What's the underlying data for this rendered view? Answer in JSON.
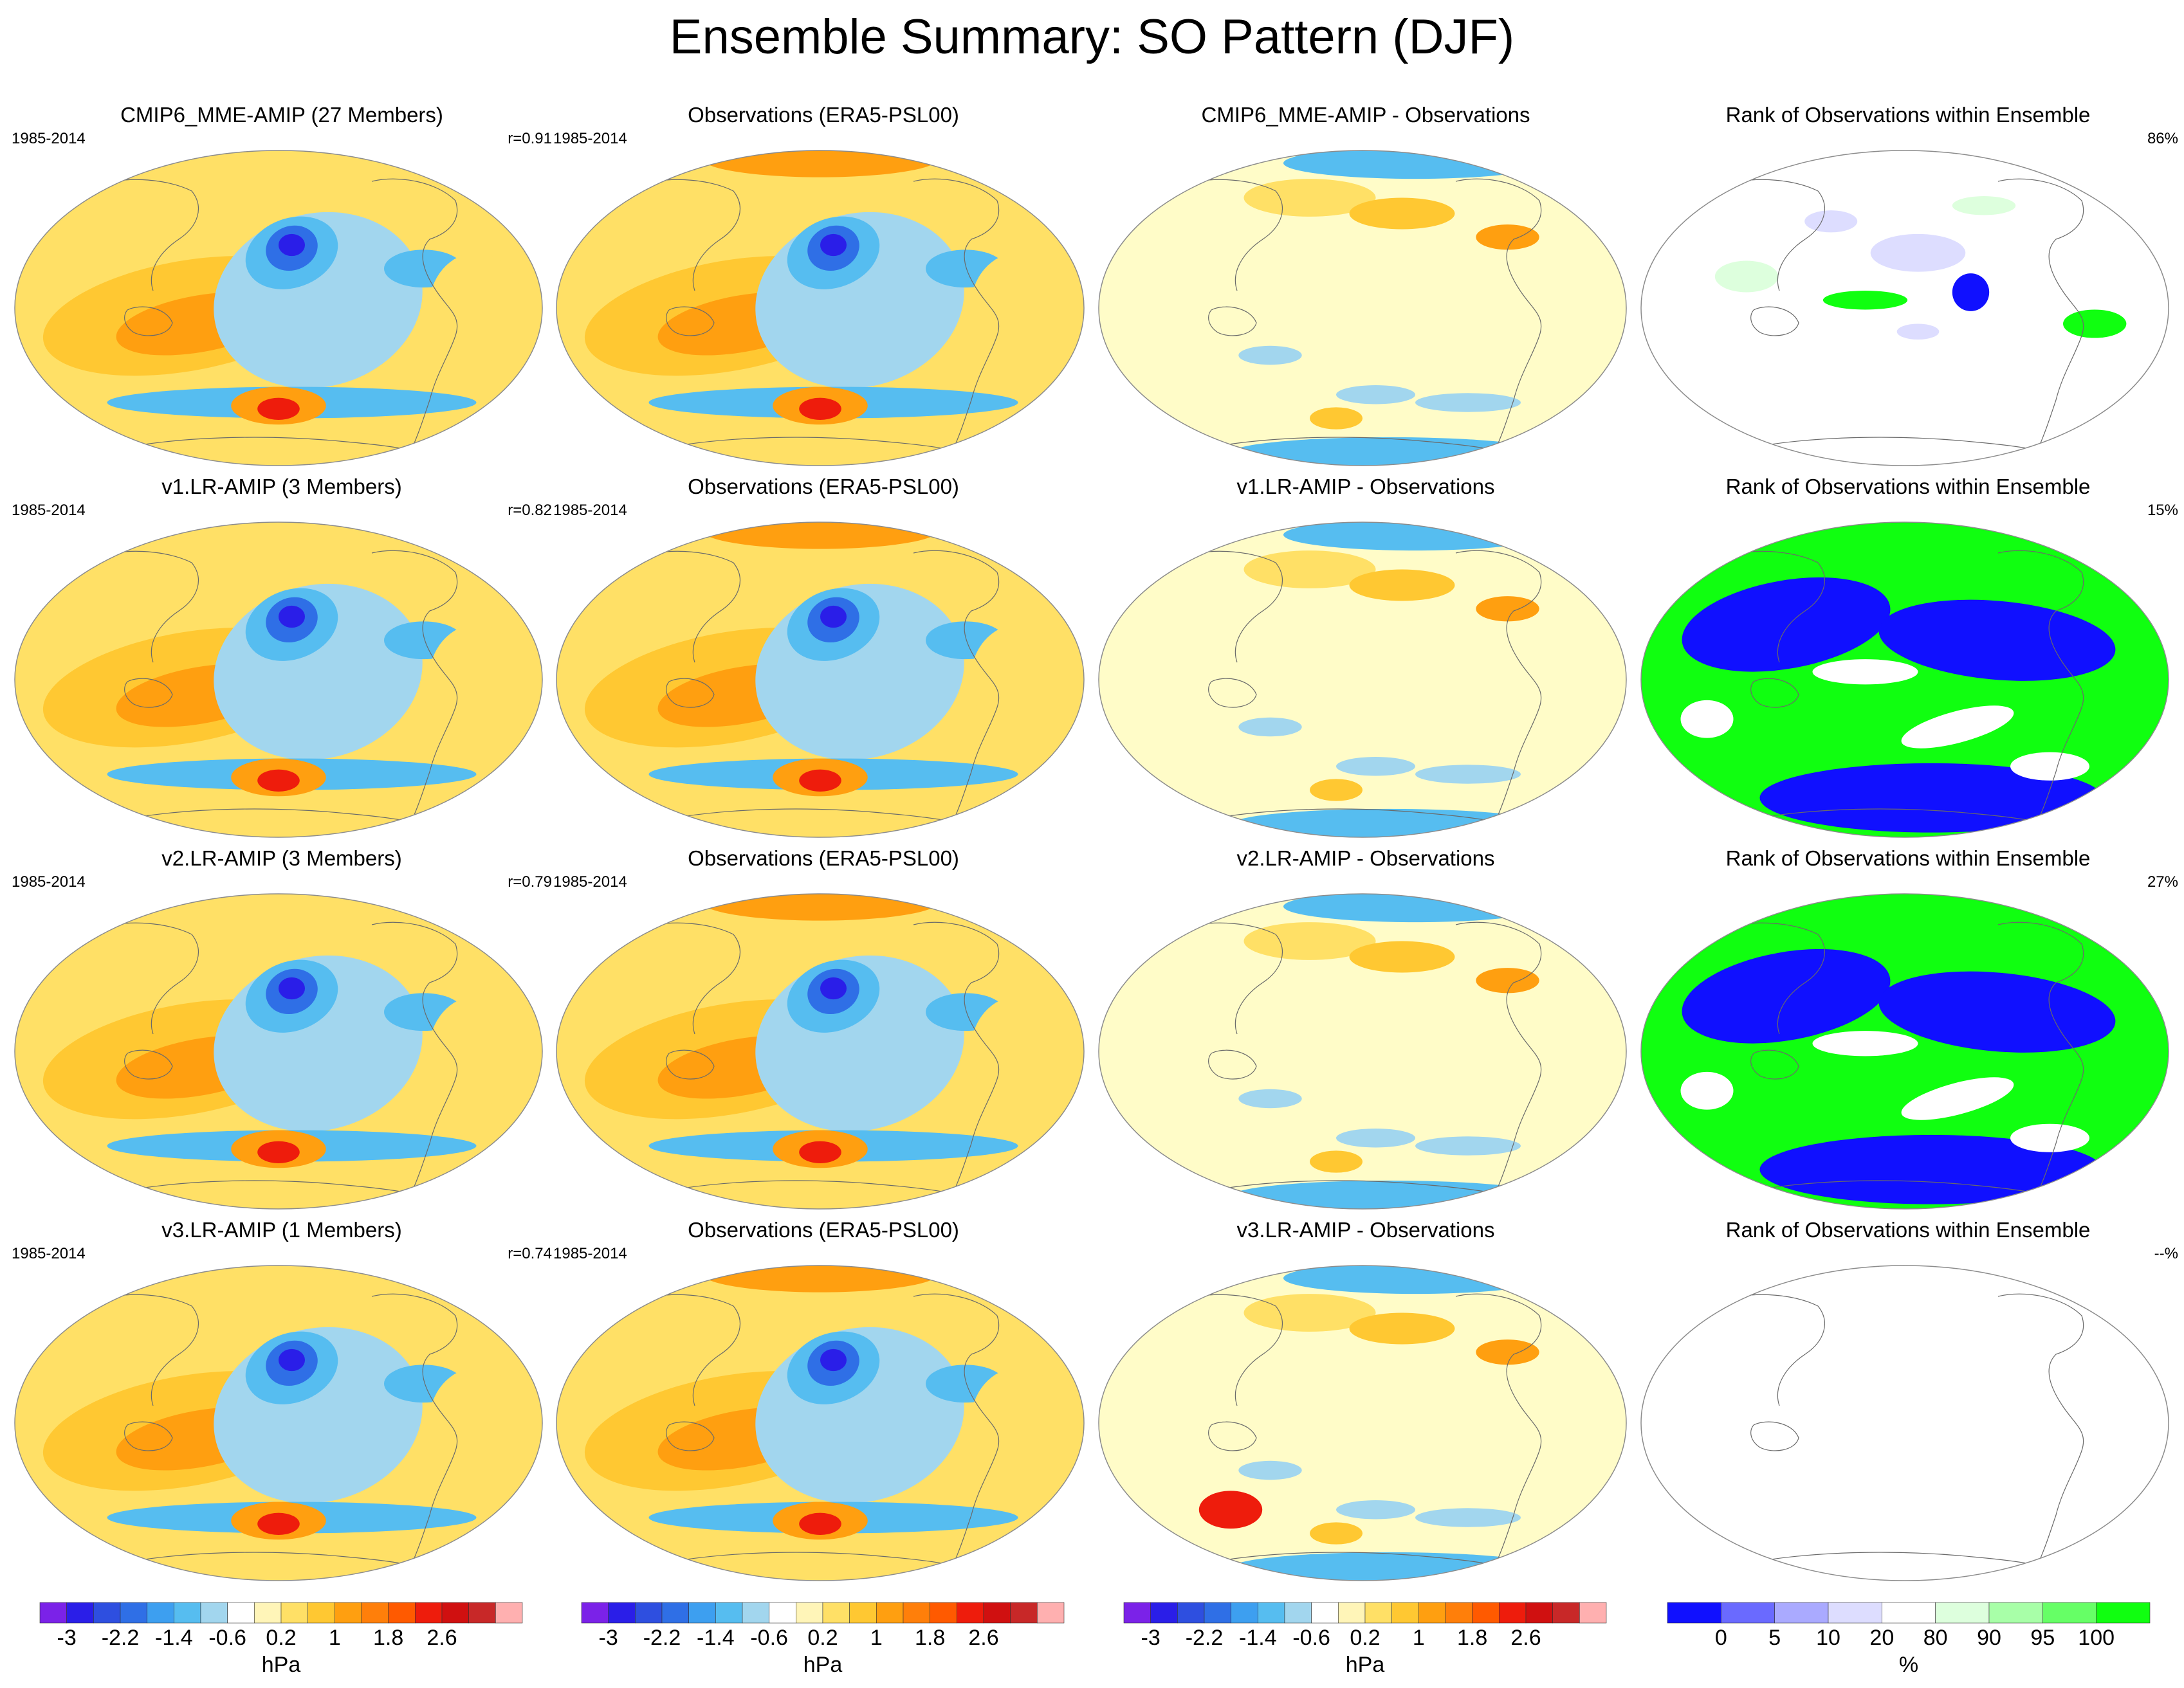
{
  "title": "Ensemble Summary: SO Pattern (DJF)",
  "rows": [
    {
      "model": {
        "title": "CMIP6_MME-AMIP (27 Members)",
        "period": "1985-2014",
        "corr": "r=0.91"
      },
      "obs": {
        "title": "Observations (ERA5-PSL00)",
        "period": "1985-2014"
      },
      "diff": {
        "title": "CMIP6_MME-AMIP - Observations"
      },
      "rank": {
        "title": "Rank of Observations within Ensemble",
        "percent": "86%",
        "fill": "sparse"
      }
    },
    {
      "model": {
        "title": "v1.LR-AMIP (3 Members)",
        "period": "1985-2014",
        "corr": "r=0.82"
      },
      "obs": {
        "title": "Observations (ERA5-PSL00)",
        "period": "1985-2014"
      },
      "diff": {
        "title": "v1.LR-AMIP - Observations"
      },
      "rank": {
        "title": "Rank of Observations within Ensemble",
        "percent": "15%",
        "fill": "full"
      }
    },
    {
      "model": {
        "title": "v2.LR-AMIP (3 Members)",
        "period": "1985-2014",
        "corr": "r=0.79"
      },
      "obs": {
        "title": "Observations (ERA5-PSL00)",
        "period": "1985-2014"
      },
      "diff": {
        "title": "v2.LR-AMIP - Observations"
      },
      "rank": {
        "title": "Rank of Observations within Ensemble",
        "percent": "27%",
        "fill": "full"
      }
    },
    {
      "model": {
        "title": "v3.LR-AMIP (1 Members)",
        "period": "1985-2014",
        "corr": "r=0.74"
      },
      "obs": {
        "title": "Observations (ERA5-PSL00)",
        "period": "1985-2014"
      },
      "diff": {
        "title": "v3.LR-AMIP - Observations"
      },
      "rank": {
        "title": "Rank of Observations within Ensemble",
        "percent": "--%",
        "fill": "none"
      }
    }
  ],
  "colorbar_hpa": {
    "unit": "hPa",
    "tick_labels": [
      "-3",
      "-2.2",
      "-1.4",
      "-0.6",
      "0.2",
      "1",
      "1.8",
      "2.6"
    ],
    "colors": [
      "#7b22e8",
      "#2a1ee8",
      "#2e4fe0",
      "#2f6fe6",
      "#3d9ff0",
      "#56bdf0",
      "#a2d6ee",
      "#ffffff",
      "#fff5b8",
      "#ffe066",
      "#ffc832",
      "#ff9f10",
      "#ff7f0a",
      "#ff5a00",
      "#ee1c0c",
      "#d01010",
      "#c82828",
      "#ffb0b0"
    ]
  },
  "colorbar_rank": {
    "unit": "%",
    "tick_labels": [
      "0",
      "5",
      "10",
      "20",
      "80",
      "90",
      "95",
      "100"
    ],
    "colors": [
      "#1010ff",
      "#6a6aff",
      "#aaaaff",
      "#ddddff",
      "#ffffff",
      "#ddffdd",
      "#a8ffa8",
      "#66ff66",
      "#10ff10"
    ]
  },
  "palette": {
    "neg3": "#2a1ee8",
    "neg2": "#2f6fe6",
    "neg1": "#56bdf0",
    "neg0": "#a2d6ee",
    "zero": "#fffcc8",
    "pos1": "#ffe066",
    "pos2": "#ffc832",
    "pos3": "#ff9f10",
    "pos4": "#ee1c0c",
    "rank_blue": "#1010ff",
    "rank_green": "#10ff10",
    "rank_lightblue": "#ddddff",
    "rank_lightgreen": "#ddffdd"
  },
  "chart_data": {
    "type": "heatmap",
    "title": "Ensemble Summary: SO Pattern (DJF)",
    "layout": "4 rows x 4 columns of global map panels (model, observations, model minus observations, rank of observations)",
    "units": "hPa",
    "rank_units": "%",
    "pattern_correlations": [
      {
        "model": "CMIP6_MME-AMIP",
        "members": 27,
        "r": 0.91,
        "rank_percent": 86
      },
      {
        "model": "v1.LR-AMIP",
        "members": 3,
        "r": 0.82,
        "rank_percent": 15
      },
      {
        "model": "v2.LR-AMIP",
        "members": 3,
        "r": 0.79,
        "rank_percent": 27
      },
      {
        "model": "v3.LR-AMIP",
        "members": 1,
        "r": 0.74,
        "rank_percent": null
      }
    ],
    "colorbar_levels_hpa": [
      "-3",
      "-2.2",
      "-1.4",
      "-0.6",
      "0.2",
      "1",
      "1.8",
      "2.6"
    ],
    "colorbar_levels_rank": [
      "0",
      "5",
      "10",
      "20",
      "80",
      "90",
      "95",
      "100"
    ]
  }
}
